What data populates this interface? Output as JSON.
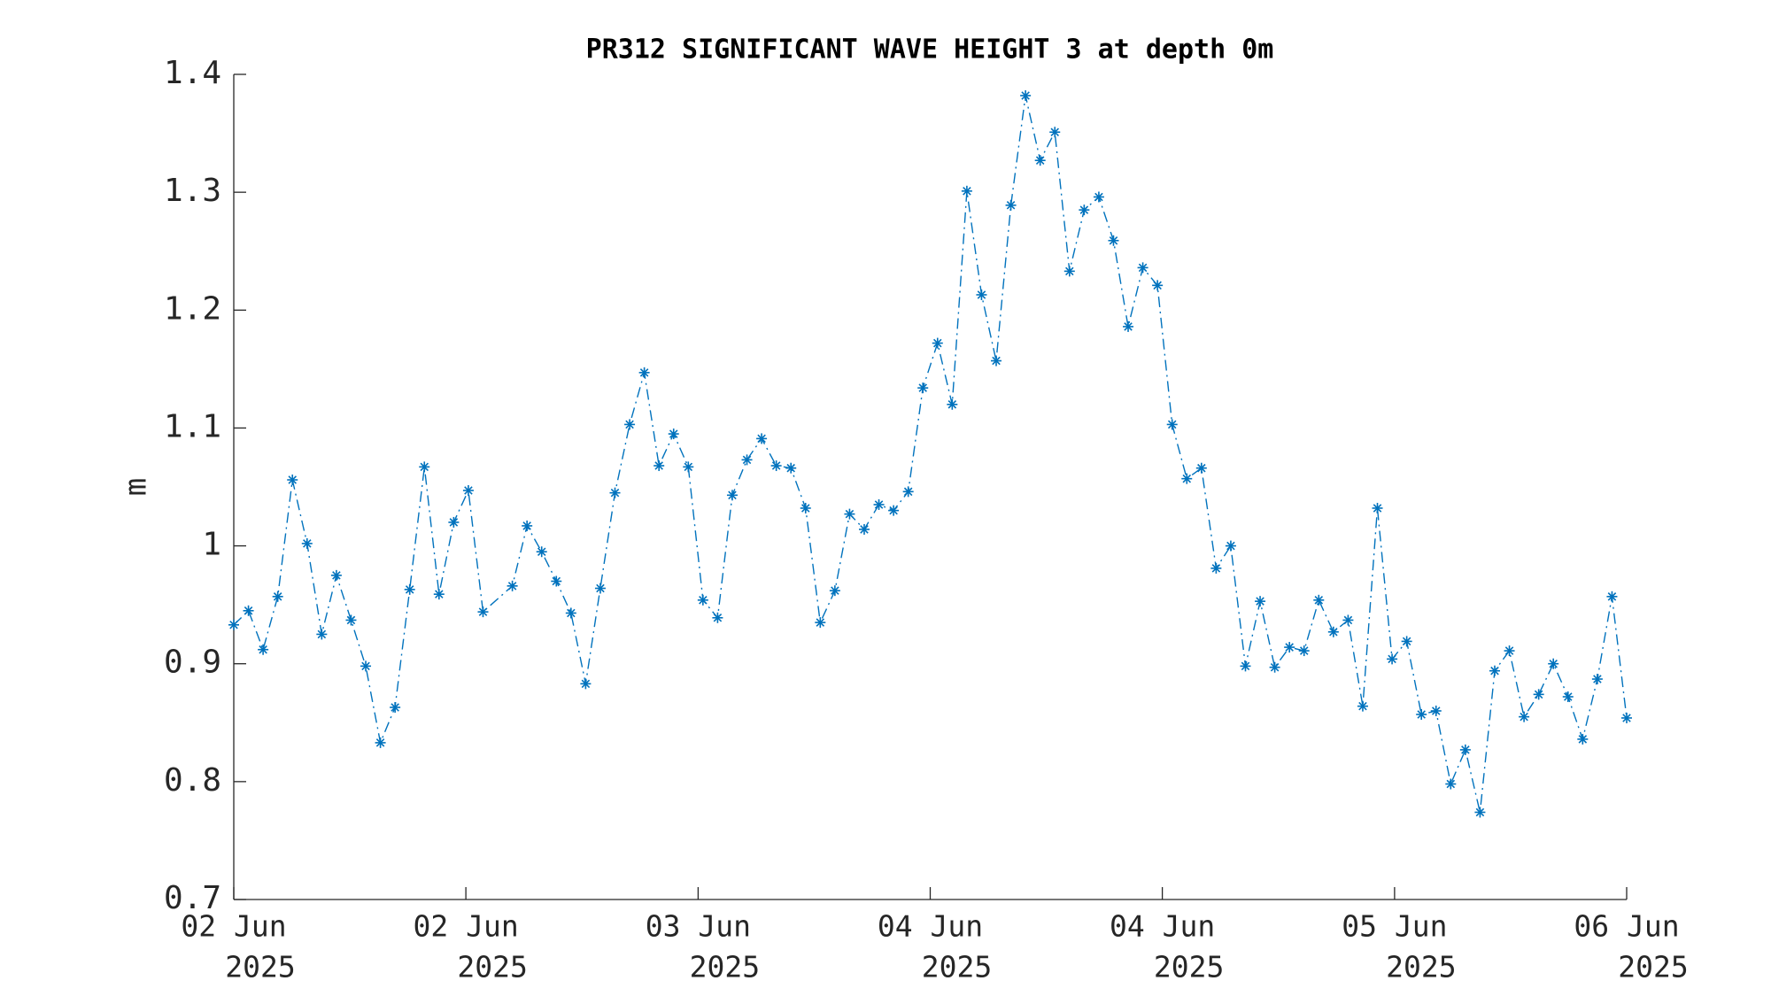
{
  "chart_data": {
    "type": "line",
    "title": "PR312 SIGNIFICANT WAVE HEIGHT 3 at depth 0m",
    "y_label": "m",
    "x": [
      0,
      1,
      2,
      3,
      4,
      5,
      6,
      7,
      8,
      9,
      10,
      11,
      12,
      13,
      14,
      15,
      16,
      17,
      19,
      20,
      21,
      22,
      23,
      24,
      25,
      26,
      27,
      28,
      29,
      30,
      31,
      32,
      33,
      34,
      35,
      36,
      37,
      38,
      39,
      40,
      41,
      42,
      43,
      44,
      45,
      46,
      47,
      48,
      49,
      50,
      51,
      52,
      53,
      54,
      55,
      56,
      57,
      58,
      59,
      60,
      61,
      62,
      63,
      64,
      65,
      66,
      67,
      68,
      69,
      70,
      71,
      72,
      73,
      74,
      75,
      76,
      77,
      78,
      79,
      80,
      81,
      82,
      83,
      84,
      85,
      86,
      87,
      88,
      89,
      90,
      91,
      92,
      93,
      94,
      95
    ],
    "series": [
      {
        "name": "m",
        "color": "#0072bd",
        "values": [
          0.933,
          0.945,
          0.912,
          0.957,
          1.056,
          1.002,
          0.925,
          0.975,
          0.937,
          0.898,
          0.833,
          0.863,
          0.963,
          1.067,
          0.959,
          1.02,
          1.047,
          0.944,
          0.966,
          1.017,
          0.995,
          0.97,
          0.943,
          0.883,
          0.964,
          1.045,
          1.103,
          1.147,
          1.068,
          1.095,
          1.067,
          0.954,
          0.939,
          1.043,
          1.073,
          1.091,
          1.068,
          1.066,
          1.032,
          0.935,
          0.962,
          1.027,
          1.014,
          1.035,
          1.03,
          1.046,
          1.134,
          1.172,
          1.12,
          1.301,
          1.213,
          1.157,
          1.289,
          1.382,
          1.327,
          1.351,
          1.233,
          1.285,
          1.296,
          1.259,
          1.186,
          1.236,
          1.221,
          1.103,
          1.057,
          1.066,
          0.981,
          1.0,
          0.898,
          0.953,
          0.897,
          0.914,
          0.911,
          0.954,
          0.927,
          0.937,
          0.864,
          1.032,
          0.904,
          0.919,
          0.857,
          0.86,
          0.798,
          0.827,
          0.774,
          0.894,
          0.911,
          0.855,
          0.874,
          0.9,
          0.872,
          0.836,
          0.887,
          0.957,
          0.854
        ]
      }
    ],
    "xlim": [
      0,
      95
    ],
    "xticks": [
      {
        "value": 0,
        "label": [
          "02 Jun",
          "2025"
        ]
      },
      {
        "value": 15.83,
        "label": [
          "02 Jun",
          "2025"
        ]
      },
      {
        "value": 31.67,
        "label": [
          "03 Jun",
          "2025"
        ]
      },
      {
        "value": 47.5,
        "label": [
          "04 Jun",
          "2025"
        ]
      },
      {
        "value": 63.33,
        "label": [
          "04 Jun",
          "2025"
        ]
      },
      {
        "value": 79.17,
        "label": [
          "05 Jun",
          "2025"
        ]
      },
      {
        "value": 95,
        "label": [
          "06 Jun",
          "2025"
        ]
      }
    ],
    "ylim": [
      0.7,
      1.4
    ],
    "yticks": [
      0.7,
      0.8,
      0.9,
      1,
      1.1,
      1.2,
      1.3,
      1.4
    ],
    "grid": false
  }
}
